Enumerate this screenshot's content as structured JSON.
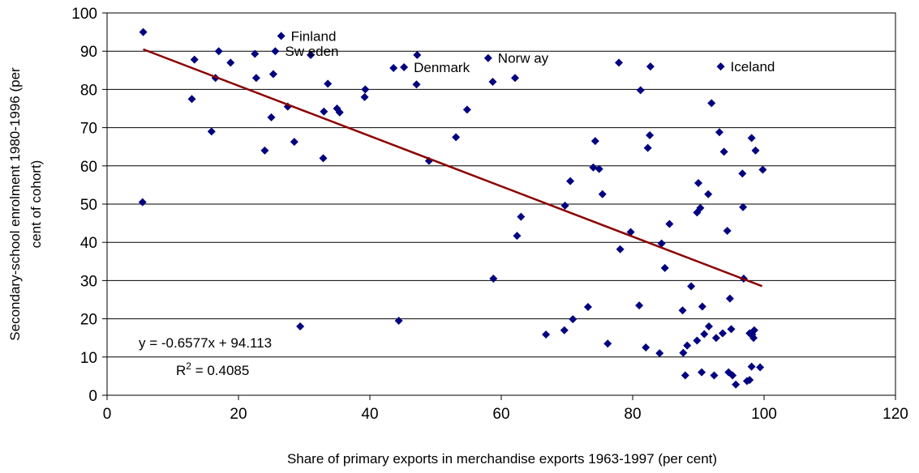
{
  "chart_data": {
    "type": "scatter",
    "title": "",
    "xlabel": "Share of primary exports in merchandise exports 1963-1997 (per cent)",
    "ylabel_lines": [
      "Secondary-school enrolment 1980-1996 (per",
      "cent of cohort)"
    ],
    "xlim": [
      0,
      120
    ],
    "ylim": [
      0,
      100
    ],
    "xticks": [
      "0",
      "20",
      "40",
      "60",
      "80",
      "100",
      "120"
    ],
    "yticks": [
      "0",
      "10",
      "20",
      "30",
      "40",
      "50",
      "60",
      "70",
      "80",
      "90",
      "100"
    ],
    "grid": "horizontal",
    "legend": "none",
    "colors": {
      "points": "#000080",
      "trendline": "#8B0000",
      "grid": "#000000"
    },
    "series": [
      {
        "marker": "diamond",
        "points": [
          [
            5.5,
            95
          ],
          [
            5.4,
            50.5
          ],
          [
            12.9,
            77.5
          ],
          [
            13.3,
            87.8
          ],
          [
            15.9,
            69
          ],
          [
            16.5,
            83
          ],
          [
            17,
            90
          ],
          [
            18.8,
            87
          ],
          [
            22.5,
            89.3
          ],
          [
            22.7,
            83
          ],
          [
            24,
            64
          ],
          [
            25,
            72.7
          ],
          [
            25.3,
            84
          ],
          [
            25.6,
            90
          ],
          [
            26.5,
            94
          ],
          [
            27.5,
            75.5
          ],
          [
            28.5,
            66.3
          ],
          [
            29.4,
            18
          ],
          [
            31,
            89
          ],
          [
            32.9,
            62
          ],
          [
            33,
            74.2
          ],
          [
            33.6,
            81.5
          ],
          [
            35,
            75
          ],
          [
            35.4,
            74
          ],
          [
            39.2,
            78
          ],
          [
            39.3,
            80
          ],
          [
            43.6,
            85.6
          ],
          [
            44.4,
            19.5
          ],
          [
            45.2,
            85.8
          ],
          [
            47.1,
            81.3
          ],
          [
            47.2,
            89
          ],
          [
            49,
            61.3
          ],
          [
            53.1,
            67.5
          ],
          [
            54.8,
            74.7
          ],
          [
            58,
            88.2
          ],
          [
            58.7,
            82
          ],
          [
            58.8,
            30.5
          ],
          [
            62.1,
            83
          ],
          [
            62.4,
            41.7
          ],
          [
            63,
            46.7
          ],
          [
            66.8,
            15.9
          ],
          [
            69.6,
            17
          ],
          [
            69.7,
            49.6
          ],
          [
            70.5,
            56
          ],
          [
            70.9,
            19.9
          ],
          [
            73.2,
            23.1
          ],
          [
            74,
            59.6
          ],
          [
            74.3,
            66.5
          ],
          [
            74.9,
            59.2
          ],
          [
            75.4,
            52.6
          ],
          [
            76.2,
            13.5
          ],
          [
            77.9,
            87
          ],
          [
            78.1,
            38.2
          ],
          [
            79.7,
            42.7
          ],
          [
            81,
            23.5
          ],
          [
            81.2,
            79.8
          ],
          [
            82,
            12.5
          ],
          [
            82.3,
            64.7
          ],
          [
            82.6,
            68
          ],
          [
            82.7,
            86
          ],
          [
            84.1,
            11
          ],
          [
            84.4,
            39.7
          ],
          [
            84.9,
            33.3
          ],
          [
            85.6,
            44.8
          ],
          [
            87.6,
            22.2
          ],
          [
            87.7,
            11.1
          ],
          [
            88,
            5.2
          ],
          [
            88.3,
            13
          ],
          [
            88.9,
            28.5
          ],
          [
            89.8,
            14.3
          ],
          [
            89.8,
            47.8
          ],
          [
            90,
            55.5
          ],
          [
            90.3,
            49
          ],
          [
            90.5,
            6
          ],
          [
            90.6,
            23.2
          ],
          [
            90.9,
            16
          ],
          [
            91.5,
            52.6
          ],
          [
            91.6,
            18
          ],
          [
            92,
            76.4
          ],
          [
            92.4,
            5.2
          ],
          [
            92.7,
            15
          ],
          [
            93.2,
            68.8
          ],
          [
            93.4,
            86
          ],
          [
            93.7,
            16.2
          ],
          [
            93.9,
            63.7
          ],
          [
            94.4,
            43
          ],
          [
            94.6,
            6
          ],
          [
            94.8,
            25.3
          ],
          [
            95,
            17.3
          ],
          [
            95.2,
            5.2
          ],
          [
            95.7,
            2.8
          ],
          [
            96.7,
            58
          ],
          [
            96.8,
            49.2
          ],
          [
            96.9,
            30.5
          ],
          [
            97.4,
            3.7
          ],
          [
            97.8,
            4
          ],
          [
            97.8,
            16.2
          ],
          [
            98.1,
            7.5
          ],
          [
            98.1,
            67.3
          ],
          [
            98.2,
            15.9
          ],
          [
            98.4,
            15
          ],
          [
            98.5,
            17
          ],
          [
            98.7,
            64
          ],
          [
            99.4,
            7.3
          ],
          [
            99.8,
            59
          ]
        ]
      }
    ],
    "trendline": {
      "equation_text": "y = -0.6577x + 94.113",
      "r2_label": "R",
      "r2_sup": "2",
      "r2_value": " = 0.4085",
      "x_start": 5.5,
      "x_end": 99.7,
      "slope": -0.6577,
      "intercept": 94.113
    },
    "annotations": [
      {
        "text": "Finland",
        "x": 26.5,
        "y": 94
      },
      {
        "text": "Sw eden",
        "x": 25.6,
        "y": 90
      },
      {
        "text": "Denmark",
        "x": 45.2,
        "y": 85.8
      },
      {
        "text": "Norw ay",
        "x": 58,
        "y": 88.2
      },
      {
        "text": "Iceland",
        "x": 93.4,
        "y": 86
      }
    ]
  }
}
